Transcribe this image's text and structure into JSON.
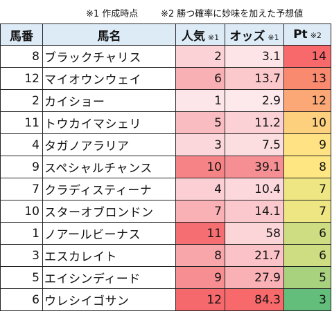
{
  "notes": {
    "note1": "※1 作成時点",
    "note2": "※2 勝つ確率に妙味を加えた予想値"
  },
  "headers": {
    "number": "馬番",
    "name": "馬名",
    "popularity": "人気",
    "popularity_mark": "※1",
    "odds": "オッズ",
    "odds_mark": "※1",
    "pt": "Pt",
    "pt_mark": "※2"
  },
  "rows": [
    {
      "number": "8",
      "name": "ブラックチャリス",
      "popularity": "2",
      "odds": "3.1",
      "pt": "14",
      "pop_color": "#fbd3d7",
      "odds_color": "#fde4e7",
      "pt_color": "#f8696b"
    },
    {
      "number": "12",
      "name": "マイオウンウェイ",
      "popularity": "6",
      "odds": "13.7",
      "pt": "13",
      "pop_color": "#f8b0b5",
      "odds_color": "#fbc8cc",
      "pt_color": "#f98a6f"
    },
    {
      "number": "2",
      "name": "カイショー",
      "popularity": "1",
      "odds": "2.9",
      "pt": "12",
      "pop_color": "#fde6e9",
      "odds_color": "#fde8eb",
      "pt_color": "#fba776"
    },
    {
      "number": "11",
      "name": "トウカイマシェリ",
      "popularity": "5",
      "odds": "11.2",
      "pt": "10",
      "pop_color": "#f9bcc1",
      "odds_color": "#fbd1d5",
      "pt_color": "#fdd07e"
    },
    {
      "number": "4",
      "name": "タガノアラリア",
      "popularity": "3",
      "odds": "7.5",
      "pt": "9",
      "pop_color": "#fbd6da",
      "odds_color": "#fcdde0",
      "pt_color": "#fee283"
    },
    {
      "number": "9",
      "name": "スペシャルチャンス",
      "popularity": "10",
      "odds": "39.1",
      "pt": "8",
      "pop_color": "#f68486",
      "odds_color": "#f58f93",
      "pt_color": "#fee683"
    },
    {
      "number": "7",
      "name": "クラディスティーナ",
      "popularity": "4",
      "odds": "10.4",
      "pt": "7",
      "pop_color": "#fbcfd3",
      "odds_color": "#fcd8dc",
      "pt_color": "#eee683"
    },
    {
      "number": "10",
      "name": "スターオブロンドン",
      "popularity": "7",
      "odds": "14.1",
      "pt": "7",
      "pop_color": "#f9b1b6",
      "odds_color": "#fbc9cd",
      "pt_color": "#eee683"
    },
    {
      "number": "1",
      "name": "ノアールビーナス",
      "popularity": "11",
      "odds": "58",
      "pt": "6",
      "pop_color": "#f56f72",
      "odds_color": "#fbd5d8",
      "pt_color": "#cedd81"
    },
    {
      "number": "3",
      "name": "エスカレイト",
      "popularity": "8",
      "odds": "21.7",
      "pt": "6",
      "pop_color": "#f9a6ab",
      "odds_color": "#fbc3c7",
      "pt_color": "#cedd81"
    },
    {
      "number": "5",
      "name": "エイシンディード",
      "popularity": "9",
      "odds": "27.9",
      "pt": "5",
      "pop_color": "#f78e92",
      "odds_color": "#f9b1b6",
      "pt_color": "#a9d27f"
    },
    {
      "number": "6",
      "name": "ウレシイゴサン",
      "popularity": "12",
      "odds": "84.3",
      "pt": "3",
      "pop_color": "#f5686b",
      "odds_color": "#f8696b",
      "pt_color": "#63be7b"
    }
  ]
}
